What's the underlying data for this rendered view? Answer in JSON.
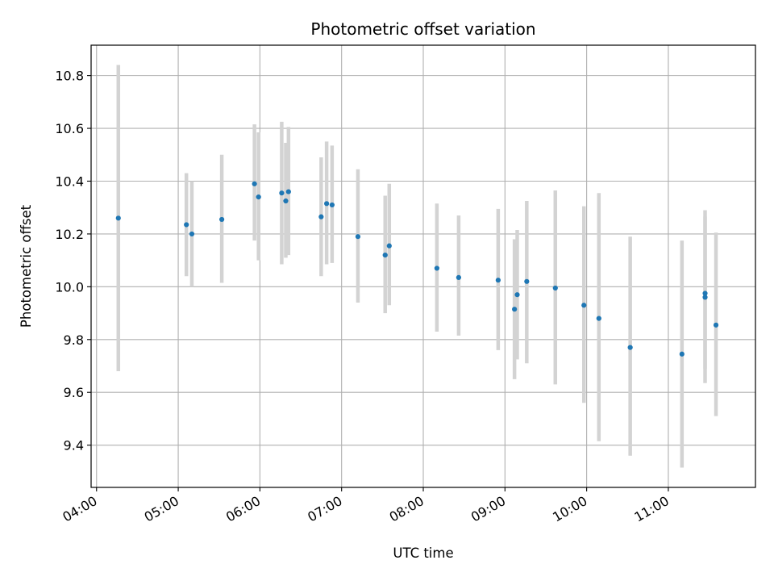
{
  "chart_data": {
    "type": "scatter",
    "title": "Photometric offset variation",
    "xlabel": "UTC time",
    "ylabel": "Photometric offset",
    "x_tick_labels": [
      "04:00",
      "05:00",
      "06:00",
      "07:00",
      "08:00",
      "09:00",
      "10:00",
      "11:00"
    ],
    "y_tick_labels": [
      "9.4",
      "9.6",
      "9.8",
      "10.0",
      "10.2",
      "10.4",
      "10.6",
      "10.8"
    ],
    "xlim": [
      "03:56",
      "12:04"
    ],
    "ylim": [
      9.24,
      10.915
    ],
    "grid": true,
    "colors": {
      "point": "#1f77b4",
      "errorbar": "#d3d3d3",
      "grid": "#b0b0b0"
    },
    "points": [
      {
        "x": "04:16",
        "y": 10.26,
        "ylow": 9.68,
        "yhigh": 10.84
      },
      {
        "x": "05:06",
        "y": 10.235,
        "ylow": 10.04,
        "yhigh": 10.43
      },
      {
        "x": "05:10",
        "y": 10.2,
        "ylow": 10.0,
        "yhigh": 10.4
      },
      {
        "x": "05:32",
        "y": 10.255,
        "ylow": 10.015,
        "yhigh": 10.5
      },
      {
        "x": "05:56",
        "y": 10.39,
        "ylow": 10.175,
        "yhigh": 10.615
      },
      {
        "x": "05:59",
        "y": 10.34,
        "ylow": 10.1,
        "yhigh": 10.585
      },
      {
        "x": "06:16",
        "y": 10.355,
        "ylow": 10.085,
        "yhigh": 10.625
      },
      {
        "x": "06:19",
        "y": 10.325,
        "ylow": 10.11,
        "yhigh": 10.545
      },
      {
        "x": "06:21",
        "y": 10.36,
        "ylow": 10.12,
        "yhigh": 10.605
      },
      {
        "x": "06:45",
        "y": 10.265,
        "ylow": 10.04,
        "yhigh": 10.49
      },
      {
        "x": "06:49",
        "y": 10.315,
        "ylow": 10.085,
        "yhigh": 10.55
      },
      {
        "x": "06:53",
        "y": 10.31,
        "ylow": 10.09,
        "yhigh": 10.535
      },
      {
        "x": "07:12",
        "y": 10.19,
        "ylow": 9.94,
        "yhigh": 10.445
      },
      {
        "x": "07:32",
        "y": 10.12,
        "ylow": 9.9,
        "yhigh": 10.345
      },
      {
        "x": "07:35",
        "y": 10.155,
        "ylow": 9.93,
        "yhigh": 10.39
      },
      {
        "x": "08:10",
        "y": 10.07,
        "ylow": 9.83,
        "yhigh": 10.315
      },
      {
        "x": "08:26",
        "y": 10.035,
        "ylow": 9.815,
        "yhigh": 10.27
      },
      {
        "x": "08:55",
        "y": 10.025,
        "ylow": 9.76,
        "yhigh": 10.295
      },
      {
        "x": "09:07",
        "y": 9.915,
        "ylow": 9.65,
        "yhigh": 10.18
      },
      {
        "x": "09:09",
        "y": 9.97,
        "ylow": 9.725,
        "yhigh": 10.215
      },
      {
        "x": "09:16",
        "y": 10.02,
        "ylow": 9.71,
        "yhigh": 10.325
      },
      {
        "x": "09:37",
        "y": 9.995,
        "ylow": 9.63,
        "yhigh": 10.365
      },
      {
        "x": "09:58",
        "y": 9.93,
        "ylow": 9.56,
        "yhigh": 10.305
      },
      {
        "x": "10:09",
        "y": 9.88,
        "ylow": 9.415,
        "yhigh": 10.355
      },
      {
        "x": "10:32",
        "y": 9.77,
        "ylow": 9.36,
        "yhigh": 10.19
      },
      {
        "x": "11:10",
        "y": 9.745,
        "ylow": 9.315,
        "yhigh": 10.175
      },
      {
        "x": "11:27",
        "y": 9.96,
        "ylow": 9.635,
        "yhigh": 10.29
      },
      {
        "x": "11:27",
        "y": 9.975,
        "ylow": 9.69,
        "yhigh": 10.265
      },
      {
        "x": "11:35",
        "y": 9.855,
        "ylow": 9.51,
        "yhigh": 10.205
      }
    ]
  }
}
